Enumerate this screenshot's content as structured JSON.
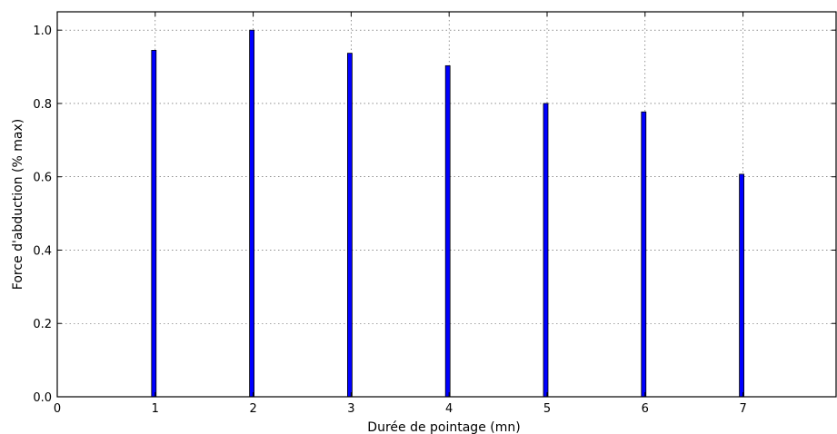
{
  "chart_data": {
    "type": "bar",
    "x": [
      1,
      2,
      3,
      4,
      5,
      6,
      7
    ],
    "values": [
      0.945,
      1.0,
      0.937,
      0.903,
      0.8,
      0.777,
      0.607
    ],
    "xlabel": "Durée de pointage (mn)",
    "ylabel": "Force d'abduction (% max)",
    "xlim": [
      0,
      7.95
    ],
    "ylim": [
      0.0,
      1.05
    ],
    "xticks": [
      "0",
      "1",
      "2",
      "3",
      "4",
      "5",
      "6",
      "7"
    ],
    "yticks": [
      "0.0",
      "0.2",
      "0.4",
      "0.6",
      "0.8",
      "1.0"
    ],
    "grid": true,
    "bar_color": "#0000ff"
  }
}
